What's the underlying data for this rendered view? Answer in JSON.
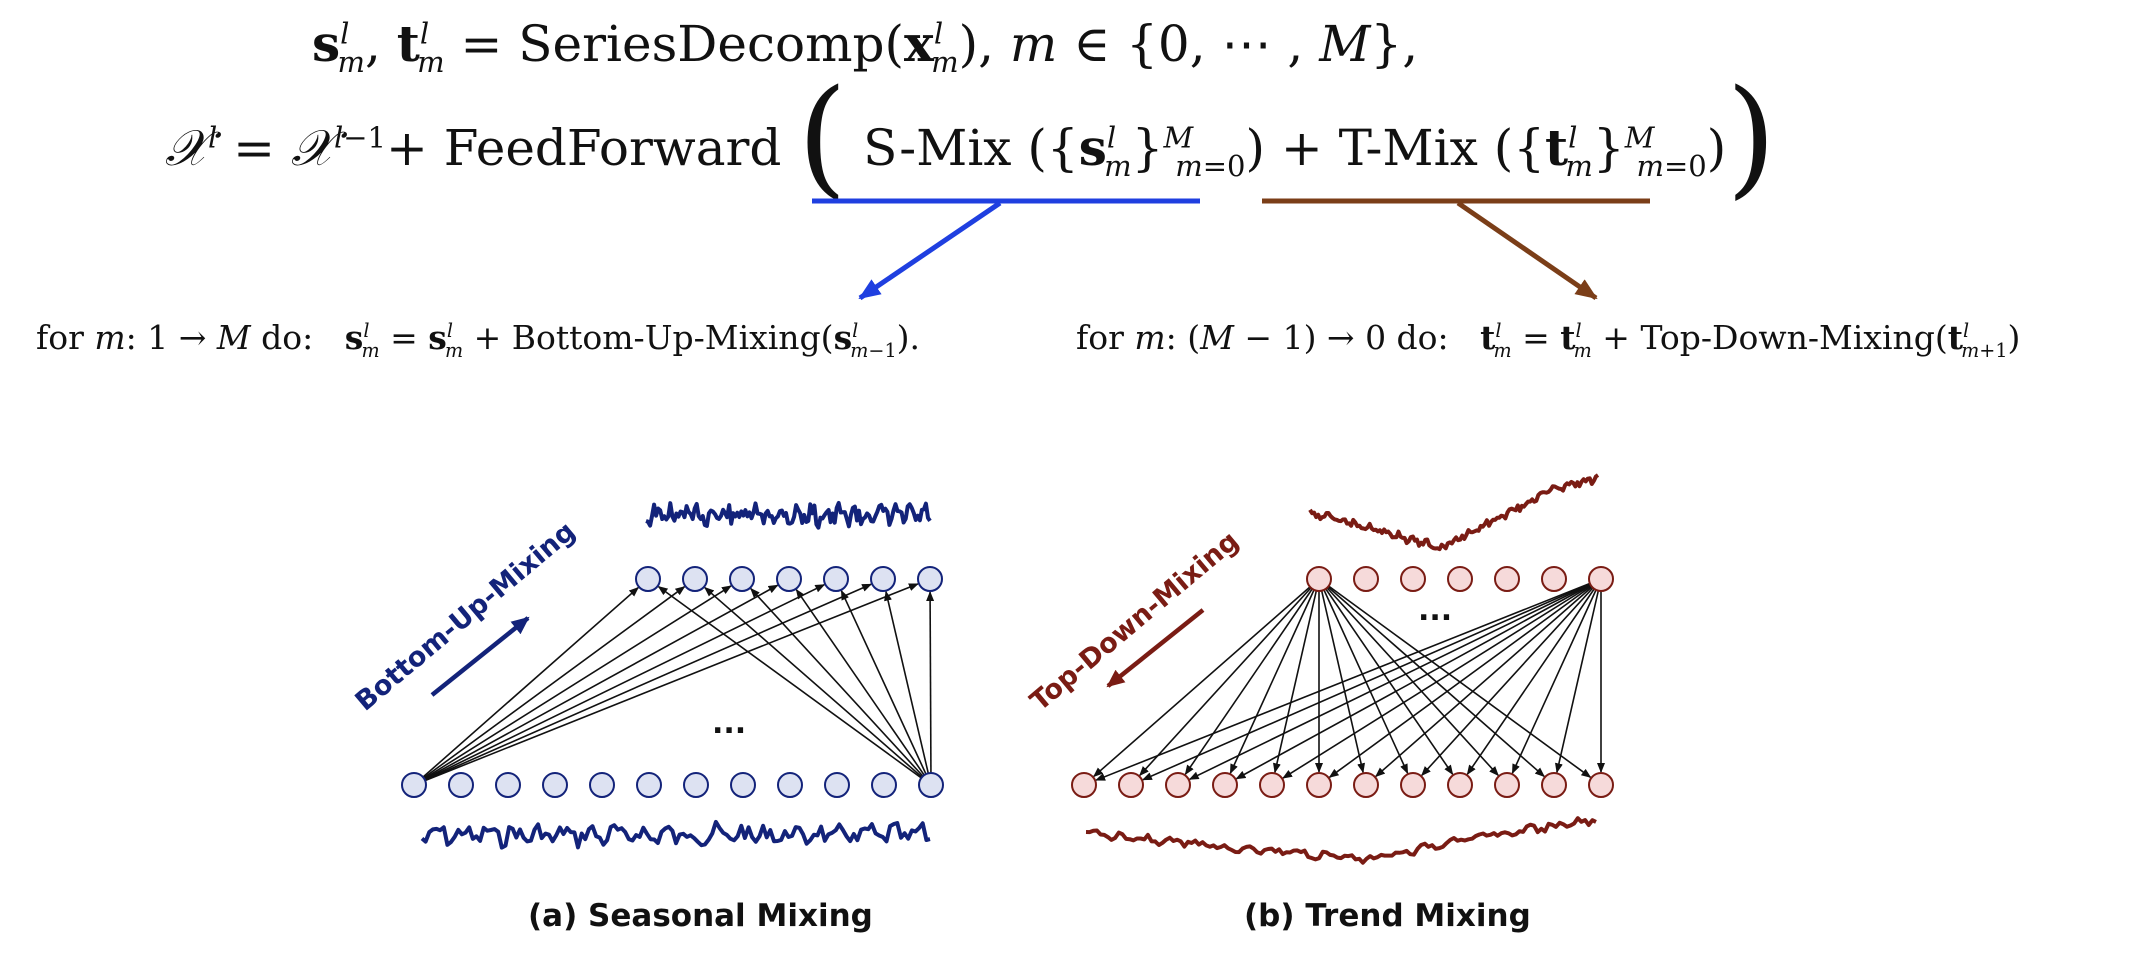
{
  "equations": {
    "decomp": "sᵐˡ, tᵐˡ = SeriesDecomp(xᵐˡ), m ∈ {0, ⋯ , M},",
    "update": "𝒳ˡ = 𝒳ˡ⁻¹ + FeedForward ( S-Mix ({sᵐˡ}ᴹₘ₌₀) + T-Mix ({tᵐˡ}ᴹₘ₌₀) )",
    "bottom_up": "for m: 1 → M do:   sᵐˡ = sᵐˡ + Bottom-Up-Mixing(sˡₘ₋₁).",
    "top_down": "for m: (M − 1) → 0 do:   tᵐˡ = tᵐˡ + Top-Down-Mixing(tˡₘ₊₁)"
  },
  "labels": {
    "bottom_up_mixing": "Bottom-Up-Mixing",
    "top_down_mixing": "Top-Down-Mixing",
    "ellipsis": "...",
    "caption_a": "(a) Seasonal Mixing",
    "caption_b": "(b) Trend Mixing"
  },
  "colors": {
    "s_mix_underline": "#1f3fe0",
    "t_mix_underline": "#7b3e18",
    "seasonal": "#13237a",
    "trend": "#7a1c14",
    "seasonal_node_fill": "#dde2f2",
    "trend_node_fill": "#f6dada"
  }
}
